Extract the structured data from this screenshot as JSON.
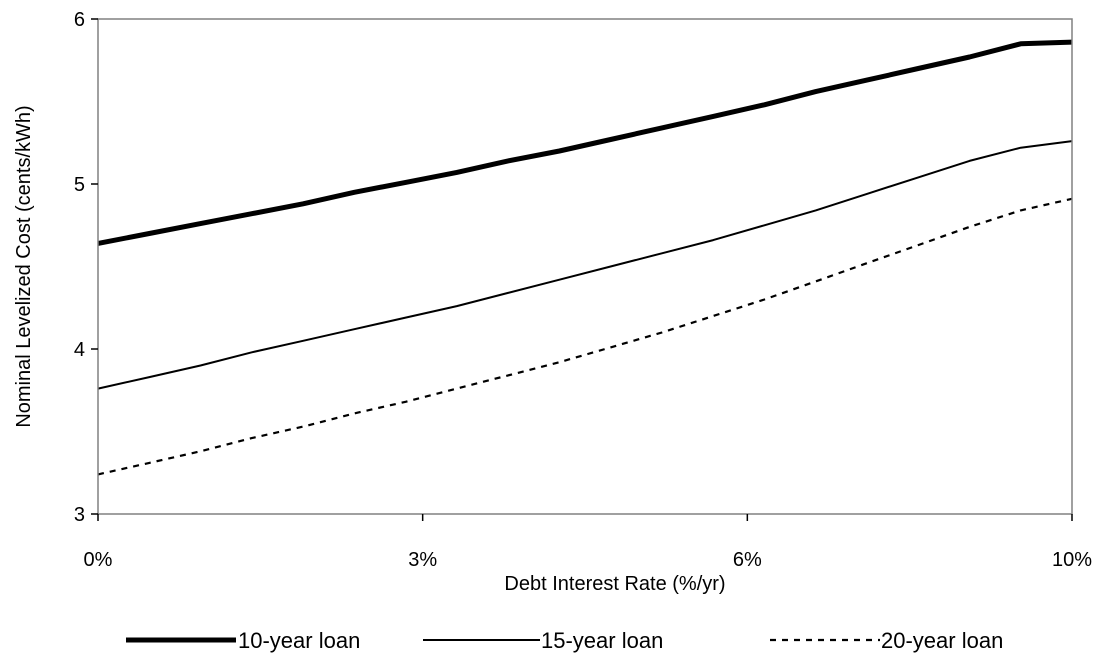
{
  "chart_data": {
    "type": "line",
    "xlabel": "Debt Interest Rate (%/yr)",
    "ylabel": "Nominal Levelized Cost (cents/kWh)",
    "x_tick_labels": [
      "0%",
      "3%",
      "6%",
      "10%"
    ],
    "y_ticks": [
      3,
      4,
      5,
      6
    ],
    "ylim": [
      3,
      6
    ],
    "grid": false,
    "legend_position": "bottom",
    "series": [
      {
        "name": "10-year loan",
        "color": "#000000",
        "style": "solid-thick",
        "points": [
          [
            0,
            4.64
          ],
          [
            0.5,
            4.7
          ],
          [
            1,
            4.76
          ],
          [
            1.5,
            4.82
          ],
          [
            2,
            4.88
          ],
          [
            2.5,
            4.95
          ],
          [
            3,
            5.01
          ],
          [
            3.5,
            5.07
          ],
          [
            4,
            5.14
          ],
          [
            4.5,
            5.2
          ],
          [
            5,
            5.27
          ],
          [
            5.5,
            5.34
          ],
          [
            6,
            5.41
          ],
          [
            6.5,
            5.48
          ],
          [
            7,
            5.56
          ],
          [
            7.5,
            5.63
          ],
          [
            8,
            5.7
          ],
          [
            8.5,
            5.77
          ],
          [
            9,
            5.85
          ],
          [
            9.5,
            5.86
          ]
        ]
      },
      {
        "name": "15-year loan",
        "color": "#000000",
        "style": "solid-thin",
        "points": [
          [
            0,
            3.76
          ],
          [
            0.5,
            3.83
          ],
          [
            1,
            3.9
          ],
          [
            1.5,
            3.98
          ],
          [
            2,
            4.05
          ],
          [
            2.5,
            4.12
          ],
          [
            3,
            4.19
          ],
          [
            3.5,
            4.26
          ],
          [
            4,
            4.34
          ],
          [
            4.5,
            4.42
          ],
          [
            5,
            4.5
          ],
          [
            5.5,
            4.58
          ],
          [
            6,
            4.66
          ],
          [
            6.5,
            4.75
          ],
          [
            7,
            4.84
          ],
          [
            7.5,
            4.94
          ],
          [
            8,
            5.04
          ],
          [
            8.5,
            5.14
          ],
          [
            9,
            5.22
          ],
          [
            9.5,
            5.26
          ]
        ]
      },
      {
        "name": "20-year loan",
        "color": "#000000",
        "style": "dotted",
        "points": [
          [
            0,
            3.24
          ],
          [
            0.5,
            3.31
          ],
          [
            1,
            3.38
          ],
          [
            1.5,
            3.46
          ],
          [
            2,
            3.53
          ],
          [
            2.5,
            3.61
          ],
          [
            3,
            3.68
          ],
          [
            3.5,
            3.76
          ],
          [
            4,
            3.84
          ],
          [
            4.5,
            3.92
          ],
          [
            5,
            4.01
          ],
          [
            5.5,
            4.1
          ],
          [
            6,
            4.2
          ],
          [
            6.5,
            4.3
          ],
          [
            7,
            4.41
          ],
          [
            7.5,
            4.52
          ],
          [
            8,
            4.63
          ],
          [
            8.5,
            4.74
          ],
          [
            9,
            4.84
          ],
          [
            9.5,
            4.91
          ]
        ]
      }
    ]
  }
}
